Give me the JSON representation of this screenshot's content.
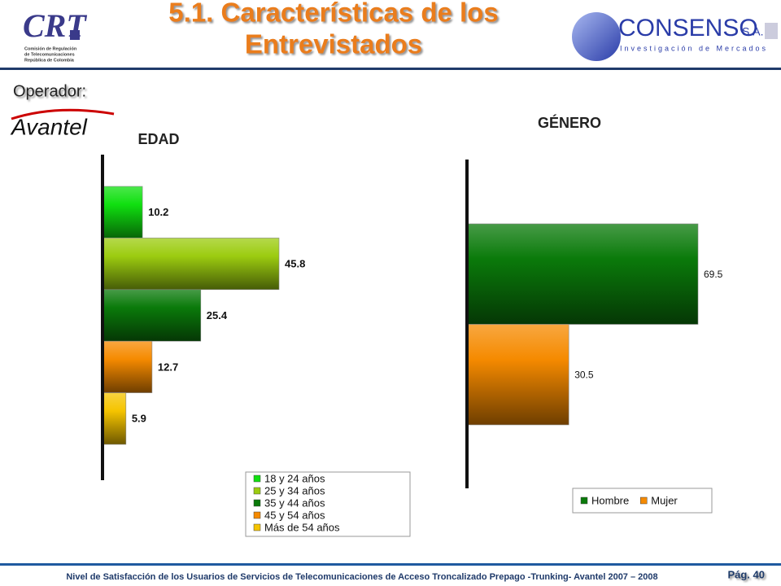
{
  "header": {
    "title_line1": "5.1. Características de los",
    "title_line2": "Entrevistados",
    "left_logo": "CRT",
    "left_logo_caption": [
      "Comisión de Regulación",
      "de Telecomunicaciones",
      "República de Colombia"
    ],
    "right_logo": "CONSENSO",
    "right_logo_suffix": "S.A.",
    "right_logo_caption": "Investigación de Mercados"
  },
  "operator_label": "Operador:",
  "operator": "Avantel",
  "chart_data": [
    {
      "type": "bar",
      "orientation": "horizontal",
      "title": "EDAD",
      "categories": [
        "18 y 24 años",
        "25 y 34 años",
        "35 y 44 años",
        "45 y 54 años",
        "Más de 54 años"
      ],
      "values": [
        10.2,
        45.8,
        25.4,
        12.7,
        5.9
      ],
      "colors": [
        "#10e010",
        "#9ccc10",
        "#0a7a0a",
        "#f58a00",
        "#f5c400"
      ],
      "legend": "bottom-right"
    },
    {
      "type": "bar",
      "orientation": "horizontal",
      "title": "GÉNERO",
      "categories": [
        "Hombre",
        "Mujer"
      ],
      "values": [
        69.5,
        30.5
      ],
      "colors": [
        "#0a7a0a",
        "#f58a00"
      ],
      "legend": "bottom-right"
    }
  ],
  "footer": "Nivel de Satisfacción de los Usuarios de Servicios de Telecomunicaciones de Acceso Troncalizado Prepago -Trunking- Avantel 2007 – 2008",
  "page": "Pág. 40"
}
